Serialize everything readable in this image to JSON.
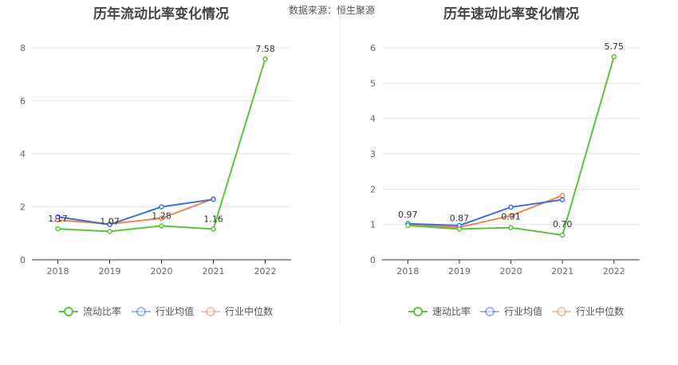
{
  "source": "数据来源：恒生聚源",
  "chart_data": [
    {
      "type": "line",
      "title": "历年流动比率变化情况",
      "categories": [
        "2018",
        "2019",
        "2020",
        "2021",
        "2022"
      ],
      "ylim": [
        0,
        8
      ],
      "yticks": [
        0,
        2,
        4,
        6,
        8
      ],
      "grid": true,
      "legend_position": "bottom",
      "series": [
        {
          "name": "流动比率",
          "color": "#5ac53a",
          "values": [
            1.17,
            1.07,
            1.28,
            1.16,
            7.58
          ],
          "labels": [
            "1.17",
            "1.07",
            "1.28",
            "1.16",
            "7.58"
          ]
        },
        {
          "name": "行业均值",
          "color": "#3e6fd8",
          "values": [
            1.62,
            1.33,
            2.0,
            2.28,
            null
          ]
        },
        {
          "name": "行业中位数",
          "color": "#e8865a",
          "values": [
            1.5,
            1.35,
            1.57,
            2.3,
            null
          ]
        }
      ]
    },
    {
      "type": "line",
      "title": "历年速动比率变化情况",
      "categories": [
        "2018",
        "2019",
        "2020",
        "2021",
        "2022"
      ],
      "ylim": [
        0,
        6
      ],
      "yticks": [
        0,
        1,
        2,
        3,
        4,
        5,
        6
      ],
      "grid": true,
      "legend_position": "bottom",
      "series": [
        {
          "name": "速动比率",
          "color": "#5ac53a",
          "values": [
            0.97,
            0.87,
            0.91,
            0.7,
            5.75
          ],
          "labels": [
            "0.97",
            "0.87",
            "0.91",
            "0.70",
            "5.75"
          ]
        },
        {
          "name": "行业均值",
          "color": "#3e6fd8",
          "values": [
            1.02,
            0.97,
            1.49,
            1.7,
            null
          ]
        },
        {
          "name": "行业中位数",
          "color": "#e8865a",
          "values": [
            0.99,
            0.92,
            1.25,
            1.82,
            null
          ]
        }
      ]
    }
  ]
}
